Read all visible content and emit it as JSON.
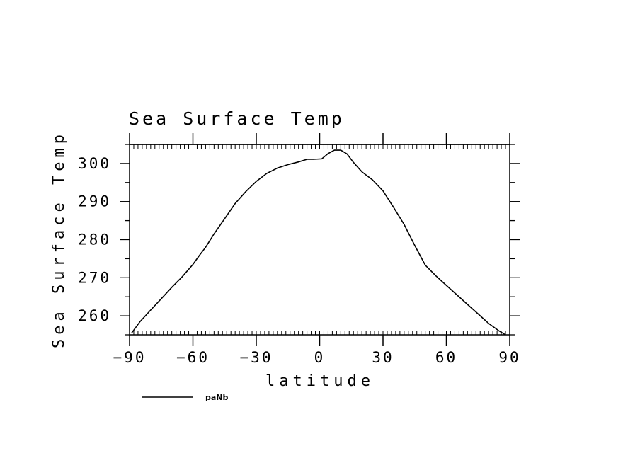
{
  "chart_data": {
    "type": "line",
    "title": "Sea Surface Temp",
    "xlabel": "latitude",
    "ylabel": "Sea Surface Temp",
    "xlim": [
      -90,
      90
    ],
    "ylim": [
      255,
      305
    ],
    "xticks": [
      -90,
      -60,
      -30,
      0,
      30,
      60,
      90
    ],
    "xtick_labels": [
      "−90",
      "−60",
      "−30",
      "0",
      "30",
      "60",
      "90"
    ],
    "yticks": [
      260,
      270,
      280,
      290,
      300
    ],
    "ytick_labels": [
      "260",
      "270",
      "280",
      "290",
      "300"
    ],
    "grid": false,
    "legend_position": "bottom-left",
    "series": [
      {
        "name": "paNb",
        "color": "#000000",
        "x": [
          -89,
          -85,
          -80,
          -75,
          -70,
          -65,
          -60,
          -57,
          -54,
          -50,
          -45,
          -40,
          -35,
          -30,
          -25,
          -20,
          -15,
          -10,
          -6,
          -3,
          1,
          4,
          7,
          10,
          13,
          16,
          20,
          25,
          30,
          35,
          40,
          45,
          50,
          55,
          60,
          65,
          70,
          75,
          80,
          85,
          88
        ],
        "y": [
          255.5,
          258.5,
          261.5,
          264.5,
          267.5,
          270.3,
          273.5,
          275.8,
          278.0,
          281.5,
          285.5,
          289.5,
          292.6,
          295.3,
          297.4,
          298.8,
          299.7,
          300.4,
          301.1,
          301.1,
          301.2,
          302.6,
          303.5,
          303.5,
          302.5,
          300.3,
          297.8,
          295.7,
          292.8,
          288.5,
          284.0,
          278.5,
          273.3,
          270.5,
          268.0,
          265.5,
          263.0,
          260.5,
          258.0,
          256.0,
          255.0
        ]
      }
    ]
  }
}
